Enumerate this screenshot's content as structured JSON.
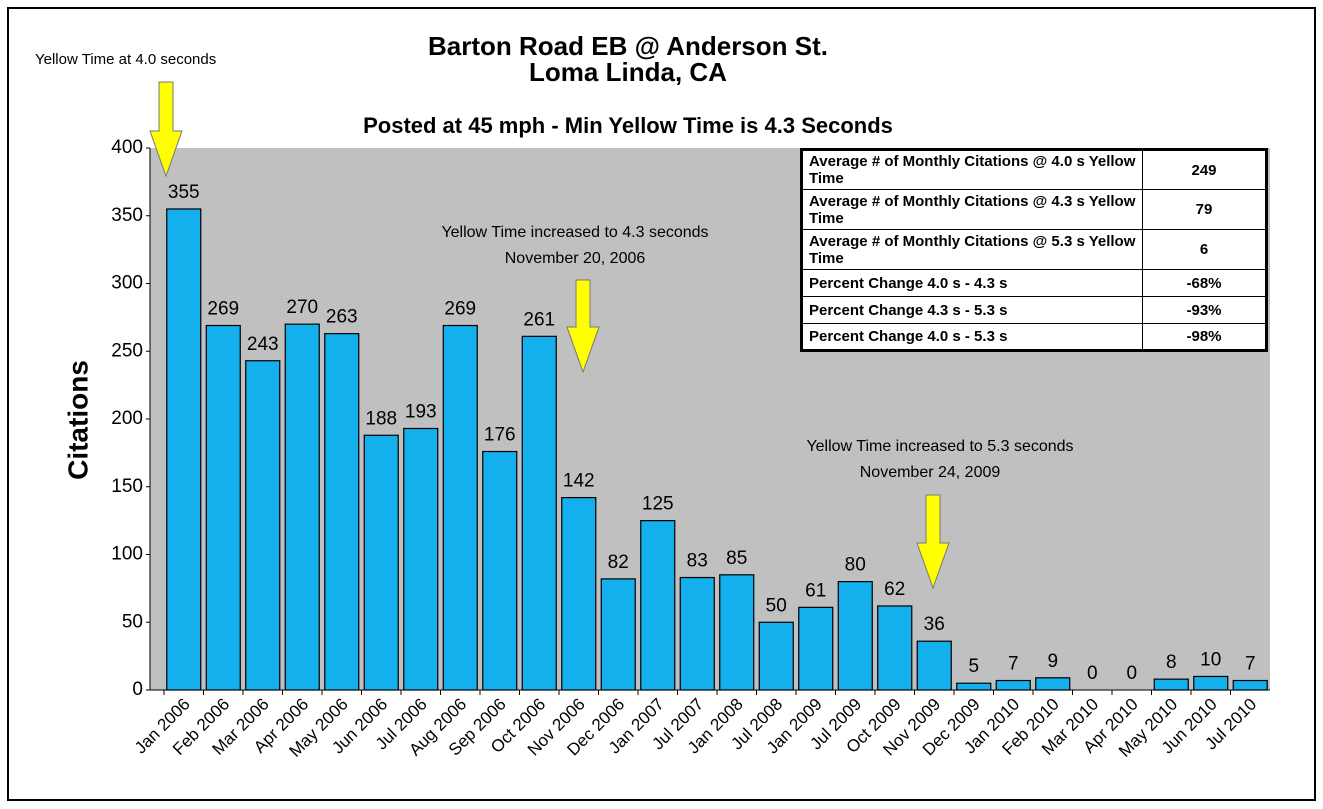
{
  "chart_data": {
    "type": "bar",
    "title": [
      "Barton Road EB @ Anderson St.",
      "Loma Linda, CA"
    ],
    "subtitle": "Posted at 45 mph - Min Yellow Time is 4.3 Seconds",
    "y_label": "Citations",
    "categories": [
      "Jan 2006",
      "Feb 2006",
      "Mar 2006",
      "Apr 2006",
      "May 2006",
      "Jun 2006",
      "Jul 2006",
      "Aug 2006",
      "Sep 2006",
      "Oct 2006",
      "Nov 2006",
      "Dec 2006",
      "Jan 2007",
      "Jul 2007",
      "Jan 2008",
      "Jul 2008",
      "Jan 2009",
      "Jul 2009",
      "Oct 2009",
      "Nov 2009",
      "Dec 2009",
      "Jan 2010",
      "Feb 2010",
      "Mar 2010",
      "Apr 2010",
      "May 2010",
      "Jun 2010",
      "Jul 2010"
    ],
    "values": [
      355,
      269,
      243,
      270,
      263,
      188,
      193,
      269,
      176,
      261,
      142,
      82,
      125,
      83,
      85,
      50,
      61,
      80,
      62,
      36,
      5,
      7,
      9,
      0,
      0,
      8,
      10,
      7
    ],
    "color": "#14b0ee",
    "ylim": [
      0,
      400
    ],
    "yticks": [
      0,
      50,
      100,
      150,
      200,
      250,
      300,
      350,
      400
    ],
    "grid": false,
    "annotations": [
      [
        "Yellow Time at 4.0 seconds"
      ],
      [
        "Yellow Time increased to 4.3 seconds",
        "November 20, 2006"
      ],
      [
        "Yellow Time increased to 5.3 seconds",
        "November 24, 2009"
      ]
    ],
    "table": {
      "rows": [
        [
          "Average # of Monthly Citations @ 4.0 s Yellow Time",
          "249"
        ],
        [
          "Average # of Monthly Citations @ 4.3 s Yellow Time",
          "79"
        ],
        [
          "Average # of Monthly Citations @ 5.3 s Yellow Time",
          "6"
        ],
        [
          "Percent Change 4.0 s - 4.3 s",
          "-68%"
        ],
        [
          "Percent Change 4.3 s - 5.3 s",
          "-93%"
        ],
        [
          "Percent Change 4.0 s - 5.3 s",
          "-98%"
        ]
      ]
    }
  }
}
